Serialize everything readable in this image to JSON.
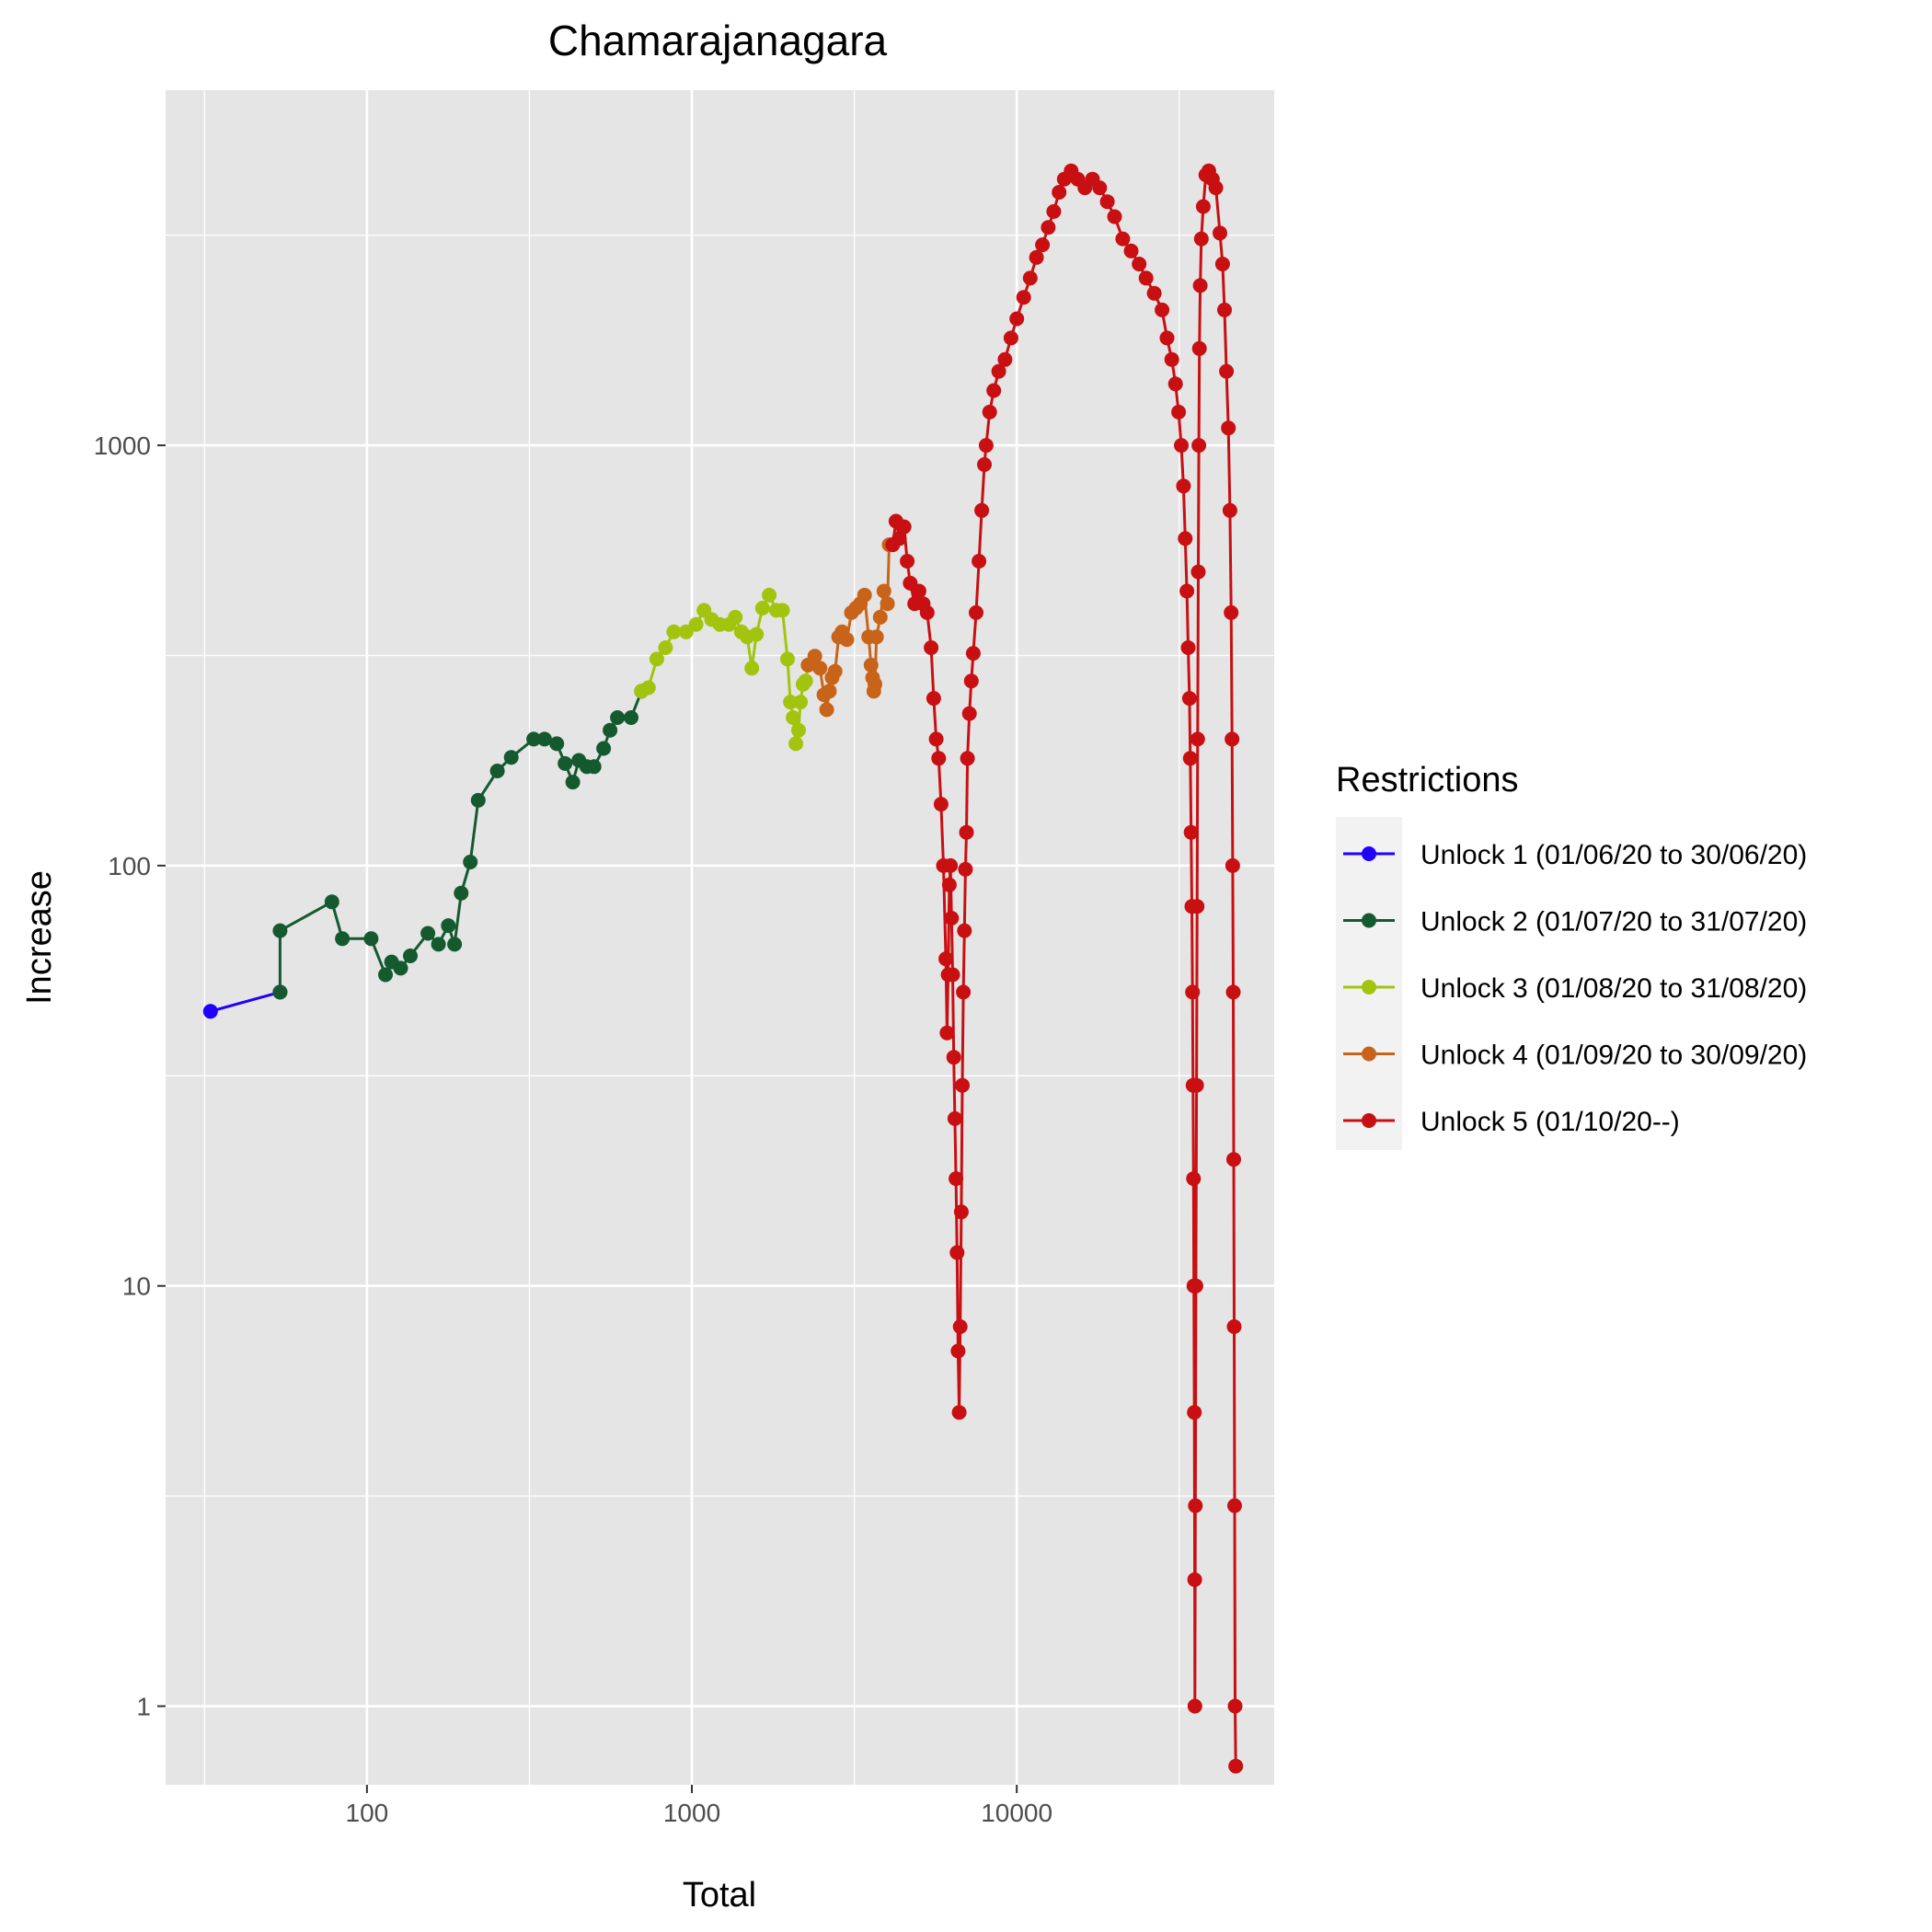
{
  "chart_data": {
    "type": "line",
    "title": "Chamarajanagara",
    "xlabel": "Total",
    "ylabel": "Increase",
    "x_scale": "log10",
    "y_scale": "log10",
    "xlim": [
      24,
      62000
    ],
    "ylim": [
      0.65,
      7000
    ],
    "x_ticks": [
      100,
      1000,
      10000
    ],
    "x_tick_labels": [
      "100",
      "1000",
      "10000"
    ],
    "y_ticks": [
      1,
      10,
      100,
      1000
    ],
    "y_tick_labels": [
      "1",
      "10",
      "100",
      "1000"
    ],
    "grid": true,
    "legend": {
      "title": "Restrictions",
      "placement": "right",
      "entries": [
        "Unlock 1 (01/06/20 to 30/06/20)",
        "Unlock 2 (01/07/20 to 31/07/20)",
        "Unlock 3 (01/08/20 to 31/08/20)",
        "Unlock 4 (01/09/20 to 30/09/20)",
        "Unlock 5 (01/10/20--)"
      ]
    },
    "series": [
      {
        "name": "Unlock 1 (01/06/20 to 30/06/20)",
        "color": "#1f00ff",
        "points": [
          [
            33,
            45
          ],
          [
            54,
            50
          ]
        ]
      },
      {
        "name": "Unlock 2 (01/07/20 to 31/07/20)",
        "color": "#155a2e",
        "points": [
          [
            54,
            50
          ],
          [
            54,
            70
          ],
          [
            78,
            82
          ],
          [
            84,
            67
          ],
          [
            103,
            67
          ],
          [
            114,
            55
          ],
          [
            119,
            59
          ],
          [
            127,
            57
          ],
          [
            136,
            61
          ],
          [
            154,
            69
          ],
          [
            166,
            65
          ],
          [
            178,
            72
          ],
          [
            186,
            65
          ],
          [
            195,
            86
          ],
          [
            208,
            102
          ],
          [
            220,
            143
          ],
          [
            252,
            168
          ],
          [
            278,
            181
          ],
          [
            326,
            200
          ],
          [
            352,
            200
          ],
          [
            384,
            195
          ],
          [
            407,
            175
          ],
          [
            430,
            158
          ],
          [
            449,
            178
          ],
          [
            475,
            172
          ],
          [
            500,
            172
          ],
          [
            535,
            190
          ],
          [
            560,
            210
          ],
          [
            590,
            225
          ],
          [
            650,
            225
          ],
          [
            700,
            260
          ]
        ]
      },
      {
        "name": "Unlock 3 (01/08/20 to 31/08/20)",
        "color": "#a3c40e",
        "points": [
          [
            700,
            260
          ],
          [
            735,
            265
          ],
          [
            780,
            310
          ],
          [
            830,
            330
          ],
          [
            880,
            360
          ],
          [
            960,
            360
          ],
          [
            1030,
            375
          ],
          [
            1090,
            405
          ],
          [
            1150,
            385
          ],
          [
            1220,
            375
          ],
          [
            1300,
            375
          ],
          [
            1360,
            390
          ],
          [
            1420,
            360
          ],
          [
            1480,
            350
          ],
          [
            1530,
            295
          ],
          [
            1580,
            355
          ],
          [
            1650,
            410
          ],
          [
            1730,
            440
          ],
          [
            1820,
            405
          ],
          [
            1900,
            405
          ],
          [
            1970,
            310
          ],
          [
            2010,
            245
          ],
          [
            2050,
            225
          ],
          [
            2090,
            195
          ],
          [
            2130,
            210
          ],
          [
            2160,
            245
          ],
          [
            2200,
            270
          ],
          [
            2240,
            275
          ],
          [
            2280,
            300
          ]
        ]
      },
      {
        "name": "Unlock 4 (01/09/20 to 30/09/20)",
        "color": "#c8641a",
        "points": [
          [
            2280,
            300
          ],
          [
            2390,
            315
          ],
          [
            2480,
            295
          ],
          [
            2550,
            255
          ],
          [
            2600,
            235
          ],
          [
            2650,
            260
          ],
          [
            2700,
            280
          ],
          [
            2760,
            290
          ],
          [
            2830,
            350
          ],
          [
            2900,
            360
          ],
          [
            3000,
            345
          ],
          [
            3100,
            400
          ],
          [
            3200,
            410
          ],
          [
            3300,
            420
          ],
          [
            3400,
            440
          ],
          [
            3500,
            350
          ],
          [
            3560,
            300
          ],
          [
            3600,
            280
          ],
          [
            3630,
            260
          ],
          [
            3660,
            270
          ],
          [
            3700,
            350
          ],
          [
            3800,
            390
          ],
          [
            3900,
            450
          ],
          [
            4000,
            420
          ],
          [
            4050,
            580
          ],
          [
            4150,
            580
          ]
        ]
      },
      {
        "name": "Unlock 5 (01/10/20--)",
        "color": "#c80f12",
        "points": [
          [
            4150,
            580
          ],
          [
            4250,
            660
          ],
          [
            4350,
            600
          ],
          [
            4500,
            640
          ],
          [
            4600,
            530
          ],
          [
            4700,
            470
          ],
          [
            4850,
            420
          ],
          [
            5000,
            450
          ],
          [
            5150,
            420
          ],
          [
            5300,
            400
          ],
          [
            5450,
            330
          ],
          [
            5550,
            250
          ],
          [
            5650,
            200
          ],
          [
            5750,
            180
          ],
          [
            5850,
            140
          ],
          [
            5950,
            100
          ],
          [
            6050,
            60
          ],
          [
            6100,
            40
          ],
          [
            6150,
            55
          ],
          [
            6200,
            90
          ],
          [
            6250,
            100
          ],
          [
            6300,
            75
          ],
          [
            6350,
            55
          ],
          [
            6400,
            35
          ],
          [
            6450,
            25
          ],
          [
            6500,
            18
          ],
          [
            6550,
            12
          ],
          [
            6600,
            7
          ],
          [
            6650,
            5
          ],
          [
            6700,
            8
          ],
          [
            6750,
            15
          ],
          [
            6800,
            30
          ],
          [
            6850,
            50
          ],
          [
            6900,
            70
          ],
          [
            6950,
            98
          ],
          [
            7000,
            120
          ],
          [
            7050,
            180
          ],
          [
            7150,
            230
          ],
          [
            7250,
            275
          ],
          [
            7350,
            320
          ],
          [
            7500,
            400
          ],
          [
            7650,
            530
          ],
          [
            7800,
            700
          ],
          [
            7950,
            900
          ],
          [
            8050,
            1000
          ],
          [
            8250,
            1200
          ],
          [
            8500,
            1350
          ],
          [
            8800,
            1500
          ],
          [
            9200,
            1600
          ],
          [
            9600,
            1800
          ],
          [
            10000,
            2000
          ],
          [
            10500,
            2250
          ],
          [
            11000,
            2500
          ],
          [
            11500,
            2800
          ],
          [
            12000,
            3000
          ],
          [
            12500,
            3300
          ],
          [
            13000,
            3600
          ],
          [
            13500,
            4000
          ],
          [
            14000,
            4300
          ],
          [
            14700,
            4500
          ],
          [
            15400,
            4300
          ],
          [
            16200,
            4100
          ],
          [
            17100,
            4300
          ],
          [
            18000,
            4100
          ],
          [
            19000,
            3800
          ],
          [
            20000,
            3500
          ],
          [
            21200,
            3100
          ],
          [
            22500,
            2900
          ],
          [
            23800,
            2700
          ],
          [
            25000,
            2500
          ],
          [
            26500,
            2300
          ],
          [
            28000,
            2100
          ],
          [
            29000,
            1800
          ],
          [
            30000,
            1600
          ],
          [
            30800,
            1400
          ],
          [
            31500,
            1200
          ],
          [
            32100,
            1000
          ],
          [
            32600,
            800
          ],
          [
            33000,
            600
          ],
          [
            33400,
            450
          ],
          [
            33700,
            330
          ],
          [
            34000,
            250
          ],
          [
            34200,
            180
          ],
          [
            34400,
            120
          ],
          [
            34600,
            80
          ],
          [
            34750,
            50
          ],
          [
            34880,
            30
          ],
          [
            35000,
            18
          ],
          [
            35100,
            10
          ],
          [
            35200,
            5
          ],
          [
            35300,
            2
          ],
          [
            35350,
            1
          ],
          [
            35450,
            3
          ],
          [
            35600,
            10
          ],
          [
            35750,
            30
          ],
          [
            35900,
            80
          ],
          [
            36050,
            200
          ],
          [
            36200,
            500
          ],
          [
            36350,
            1000
          ],
          [
            36500,
            1700
          ],
          [
            36700,
            2400
          ],
          [
            37000,
            3100
          ],
          [
            37500,
            3700
          ],
          [
            38200,
            4400
          ],
          [
            39000,
            4500
          ],
          [
            40000,
            4300
          ],
          [
            41000,
            4100
          ],
          [
            42200,
            3200
          ],
          [
            43000,
            2700
          ],
          [
            43600,
            2100
          ],
          [
            44200,
            1500
          ],
          [
            44800,
            1100
          ],
          [
            45300,
            700
          ],
          [
            45700,
            400
          ],
          [
            46000,
            200
          ],
          [
            46200,
            100
          ],
          [
            46400,
            50
          ],
          [
            46550,
            20
          ],
          [
            46700,
            8
          ],
          [
            46850,
            3
          ],
          [
            47000,
            1
          ],
          [
            47200,
            0.72
          ]
        ]
      }
    ]
  }
}
